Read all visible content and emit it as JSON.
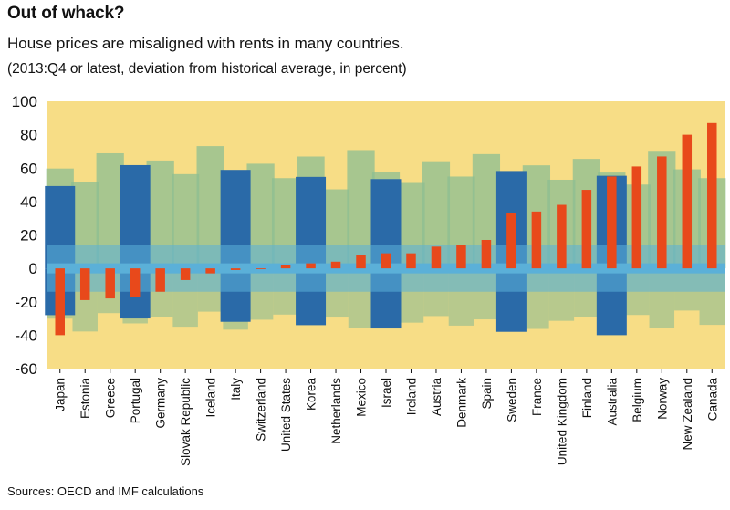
{
  "title": "Out of whack?",
  "subtitle": "House prices are misaligned with rents in many countries.",
  "note": "(2013:Q4 or latest, deviation from historical average, in percent)",
  "source": "Sources: OECD and IMF calculations",
  "colors": {
    "background": "#f7dd86",
    "bar": "#e8491b",
    "band": "#5bb0d8",
    "building_dark": "#2a6aa8",
    "building_light": "#7fb9d8",
    "building_green": "#8cbd92"
  },
  "chart_data": {
    "type": "bar",
    "title": "Out of whack?",
    "subtitle": "House prices are misaligned with rents in many countries.",
    "ylabel": "",
    "xlabel": "",
    "ylim": [
      -60,
      100
    ],
    "yticks": [
      100,
      80,
      60,
      40,
      20,
      0,
      -20,
      -40,
      -60
    ],
    "grid": false,
    "categories": [
      "Japan",
      "Estonia",
      "Greece",
      "Portugal",
      "Germany",
      "Slovak Republic",
      "Iceland",
      "Italy",
      "Switzerland",
      "United States",
      "Korea",
      "Netherlands",
      "Mexico",
      "Israel",
      "Ireland",
      "Austria",
      "Denmark",
      "Spain",
      "Sweden",
      "France",
      "United Kingdom",
      "Finland",
      "Australia",
      "Belgium",
      "Norway",
      "New Zealand",
      "Canada"
    ],
    "values": [
      -40,
      -19,
      -18,
      -17,
      -14,
      -7,
      -3,
      -1,
      -0.5,
      2,
      3,
      4,
      8,
      9,
      9,
      13,
      14,
      17,
      33,
      34,
      38,
      47,
      55,
      61,
      67,
      80,
      87
    ]
  }
}
